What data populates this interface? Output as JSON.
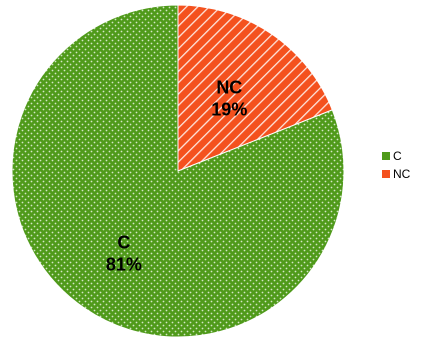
{
  "chart_data": {
    "type": "pie",
    "title": "",
    "slices": [
      {
        "name": "NC",
        "value": 19,
        "label_name": "NC",
        "label_value": "19%",
        "color": "#f4511e",
        "pattern": "white diagonal stripes"
      },
      {
        "name": "C",
        "value": 81,
        "label_name": "C",
        "label_value": "81%",
        "color": "#4f9a1a",
        "pattern": "white dots"
      }
    ],
    "start_angle_degrees": 0,
    "direction": "clockwise",
    "legend": {
      "placement": "right",
      "items": [
        {
          "label": "C",
          "color": "#4f9a1a"
        },
        {
          "label": "NC",
          "color": "#f4511e"
        }
      ]
    }
  }
}
